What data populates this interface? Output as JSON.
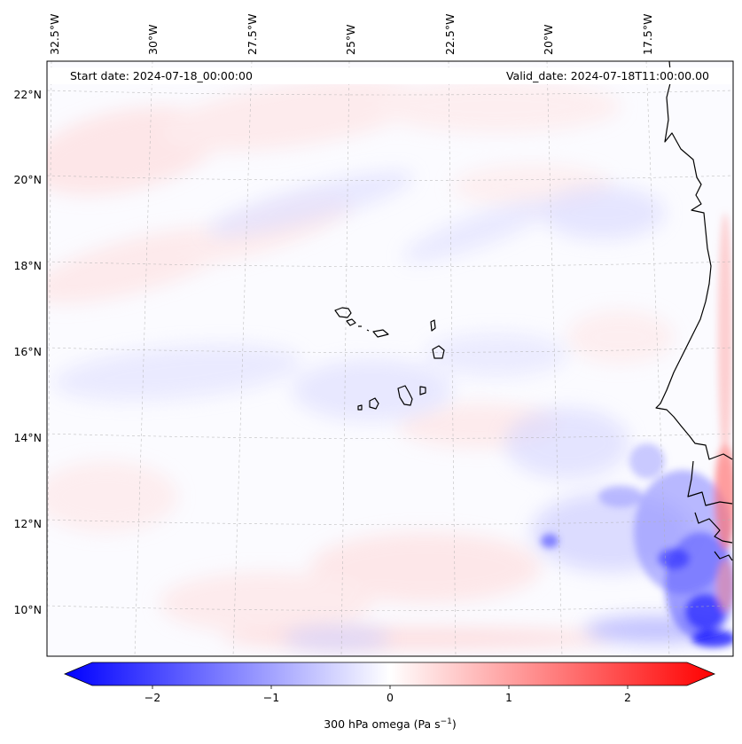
{
  "map": {
    "start_date": "Start date: 2024-07-18_00:00:00",
    "valid_date": "Valid_date: 2024-07-18T11:00:00.00",
    "lon_labels": [
      "32.5°W",
      "30°W",
      "27.5°W",
      "25°W",
      "22.5°W",
      "20°W",
      "17.5°W"
    ],
    "lat_labels": [
      "22°N",
      "20°N",
      "18°N",
      "16°N",
      "14°N",
      "12°N",
      "10°N"
    ],
    "colors": {
      "negative": "#0000ff",
      "zero": "#ffffff",
      "positive": "#ff0000",
      "coastline": "#000000",
      "gridline": "#b0b0b0"
    }
  },
  "colorbar": {
    "label": "300 hPa omega (Pa s",
    "label_sup": "−1",
    "label_end": ")",
    "ticks": [
      "−2",
      "−1",
      "0",
      "1",
      "2"
    ],
    "range": [
      -2.75,
      2.75
    ]
  }
}
